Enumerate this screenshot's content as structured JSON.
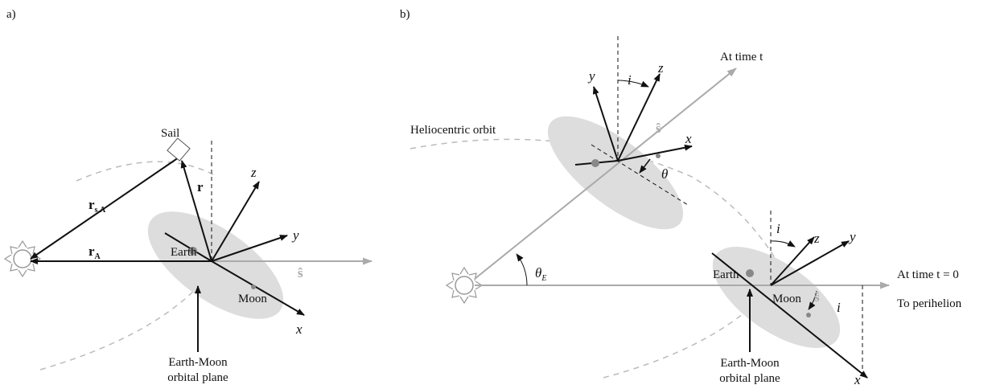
{
  "panel_a": {
    "tag": "a)",
    "sail": "Sail",
    "r_sa": {
      "main": "r",
      "sub": "s,A"
    },
    "r": "r",
    "r_a": {
      "main": "r",
      "sub": "A"
    },
    "z": "z",
    "y": "y",
    "x": "x",
    "earth": "Earth",
    "moon": "Moon",
    "s": "ŝ",
    "plane_1": "Earth-Moon",
    "plane_2": "orbital plane"
  },
  "panel_b": {
    "tag": "b)",
    "y_t": "y",
    "i_t": "i",
    "z_t": "z",
    "at_t": "At time t",
    "s_t": "ŝ",
    "helio": "Heliocentric orbit",
    "x_t": "x",
    "theta": "θ",
    "theta_e": {
      "main": "θ",
      "sub": "E"
    },
    "i_0": "i",
    "z_0": "z",
    "y_0": "y",
    "earth": "Earth",
    "s_0": "ŝ",
    "at_0": "At time t = 0",
    "perihelion": "To perihelion",
    "moon": "Moon",
    "i_x": "i",
    "x_0": "x",
    "plane_1": "Earth-Moon",
    "plane_2": "orbital plane"
  }
}
